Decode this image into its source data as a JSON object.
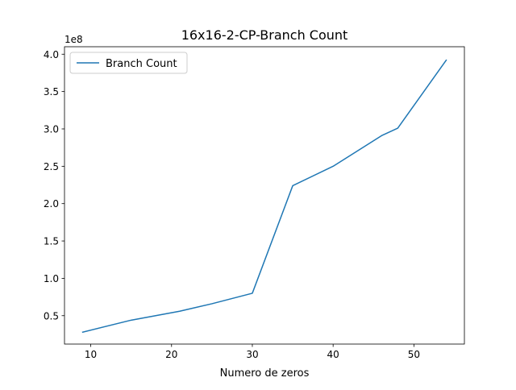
{
  "chart_data": {
    "type": "line",
    "title": "16x16-2-CP-Branch Count",
    "xlabel": "Numero de zeros",
    "ylabel": "",
    "y_offset_label": "1e8",
    "xlim": [
      6.75,
      56.25
    ],
    "ylim": [
      12000000.0,
      410000000.0
    ],
    "x_ticks": [
      10,
      20,
      30,
      40,
      50
    ],
    "y_ticks": [
      50000000.0,
      100000000.0,
      150000000.0,
      200000000.0,
      250000000.0,
      300000000.0,
      350000000.0,
      400000000.0
    ],
    "y_tick_labels": [
      "0.5",
      "1.0",
      "1.5",
      "2.0",
      "2.5",
      "3.0",
      "3.5",
      "4.0"
    ],
    "grid": false,
    "legend_position": "top-left",
    "series": [
      {
        "name": "Branch Count",
        "color": "#1f77b4",
        "x": [
          9,
          15,
          21,
          25,
          30,
          35,
          40,
          46,
          48,
          54
        ],
        "y": [
          28000000.0,
          44000000.0,
          56000000.0,
          66000000.0,
          80000000.0,
          224000000.0,
          250000000.0,
          291000000.0,
          301000000.0,
          392000000.0
        ]
      }
    ]
  }
}
